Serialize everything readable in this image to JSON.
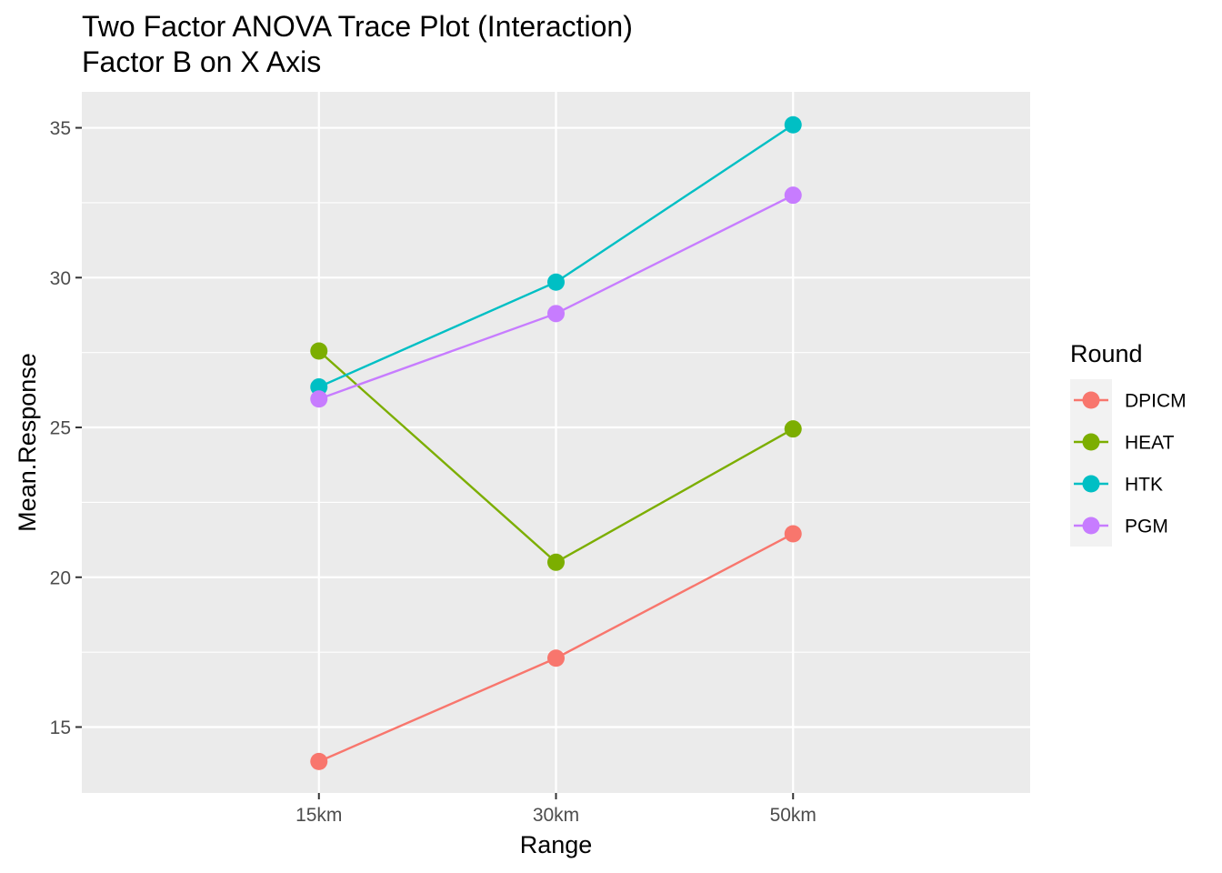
{
  "chart_data": {
    "type": "line",
    "title_line1": "Two Factor ANOVA Trace Plot (Interaction)",
    "title_line2": "Factor B on X Axis",
    "xlabel": "Range",
    "ylabel": "Mean.Response",
    "categories": [
      "15km",
      "30km",
      "50km"
    ],
    "y_ticks": [
      15,
      20,
      25,
      30,
      35
    ],
    "ylim": [
      12.8,
      36.2
    ],
    "grid": true,
    "legend": {
      "title": "Round",
      "position": "right"
    },
    "series": [
      {
        "name": "DPICM",
        "color": "#F8766D",
        "values": [
          13.85,
          17.3,
          21.45
        ]
      },
      {
        "name": "HEAT",
        "color": "#7CAE00",
        "values": [
          27.55,
          20.5,
          24.95
        ]
      },
      {
        "name": "HTK",
        "color": "#00BFC4",
        "values": [
          26.35,
          29.85,
          35.1
        ]
      },
      {
        "name": "PGM",
        "color": "#C77CFF",
        "values": [
          25.95,
          28.8,
          32.75
        ]
      }
    ]
  }
}
